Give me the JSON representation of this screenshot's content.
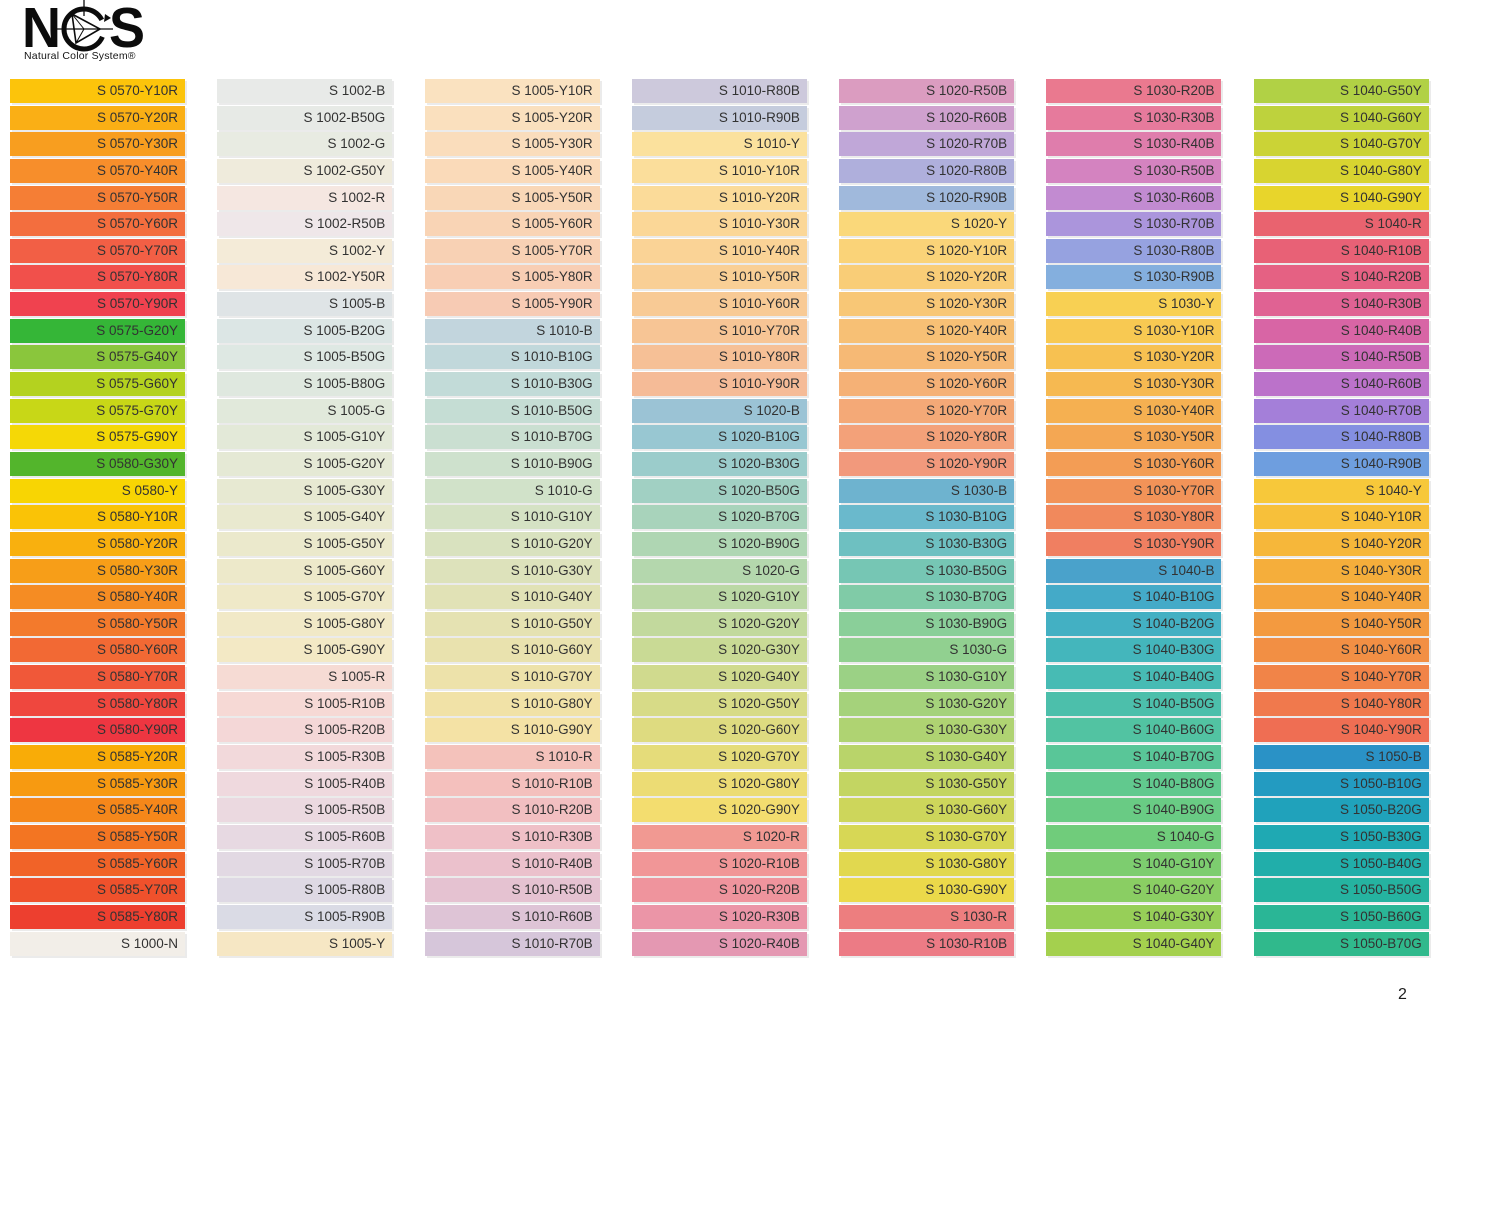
{
  "logo": {
    "letter_left": "N",
    "letter_right": "S",
    "subtitle": "Natural Color System®"
  },
  "page_number": "2",
  "label_text_color": "#323232",
  "columns": [
    [
      {
        "code": "S 0570-Y10R",
        "hex": "#FCC40B"
      },
      {
        "code": "S 0570-Y20R",
        "hex": "#FAAF15"
      },
      {
        "code": "S 0570-Y30R",
        "hex": "#F89E1F"
      },
      {
        "code": "S 0570-Y40R",
        "hex": "#F78E2B"
      },
      {
        "code": "S 0570-Y50R",
        "hex": "#F57E35"
      },
      {
        "code": "S 0570-Y60R",
        "hex": "#F36E3E"
      },
      {
        "code": "S 0570-Y70R",
        "hex": "#F25F45"
      },
      {
        "code": "S 0570-Y80R",
        "hex": "#F1504B"
      },
      {
        "code": "S 0570-Y90R",
        "hex": "#F0424F"
      },
      {
        "code": "S 0575-G20Y",
        "hex": "#35B637"
      },
      {
        "code": "S 0575-G40Y",
        "hex": "#8AC63C"
      },
      {
        "code": "S 0575-G60Y",
        "hex": "#B4D21F"
      },
      {
        "code": "S 0575-G70Y",
        "hex": "#C8D717"
      },
      {
        "code": "S 0575-G90Y",
        "hex": "#F5D806"
      },
      {
        "code": "S 0580-G30Y",
        "hex": "#53B52C"
      },
      {
        "code": "S 0580-Y",
        "hex": "#F8D503"
      },
      {
        "code": "S 0580-Y10R",
        "hex": "#FAC306"
      },
      {
        "code": "S 0580-Y20R",
        "hex": "#F9B00E"
      },
      {
        "code": "S 0580-Y30R",
        "hex": "#F79E18"
      },
      {
        "code": "S 0580-Y40R",
        "hex": "#F58C23"
      },
      {
        "code": "S 0580-Y50R",
        "hex": "#F37A2C"
      },
      {
        "code": "S 0580-Y60R",
        "hex": "#F26934"
      },
      {
        "code": "S 0580-Y70R",
        "hex": "#F05839"
      },
      {
        "code": "S 0580-Y80R",
        "hex": "#EF473E"
      },
      {
        "code": "S 0580-Y90R",
        "hex": "#EE3641"
      },
      {
        "code": "S 0585-Y20R",
        "hex": "#F9AC07"
      },
      {
        "code": "S 0585-Y30R",
        "hex": "#F79A11"
      },
      {
        "code": "S 0585-Y40R",
        "hex": "#F5871A"
      },
      {
        "code": "S 0585-Y50R",
        "hex": "#F37522"
      },
      {
        "code": "S 0585-Y60R",
        "hex": "#F16328"
      },
      {
        "code": "S 0585-Y70R",
        "hex": "#EF512C"
      },
      {
        "code": "S 0585-Y80R",
        "hex": "#ED3F2F"
      },
      {
        "code": "S 1000-N",
        "hex": "#F2EEE8"
      }
    ],
    [
      {
        "code": "S 1002-B",
        "hex": "#E8EAE8"
      },
      {
        "code": "S 1002-B50G",
        "hex": "#E7EAE6"
      },
      {
        "code": "S 1002-G",
        "hex": "#E8EBE2"
      },
      {
        "code": "S 1002-G50Y",
        "hex": "#EFEBDC"
      },
      {
        "code": "S 1002-R",
        "hex": "#F5E7E1"
      },
      {
        "code": "S 1002-R50B",
        "hex": "#EFE7E9"
      },
      {
        "code": "S 1002-Y",
        "hex": "#F4EBD8"
      },
      {
        "code": "S 1002-Y50R",
        "hex": "#F7E8D7"
      },
      {
        "code": "S 1005-B",
        "hex": "#DFE4E6"
      },
      {
        "code": "S 1005-B20G",
        "hex": "#DCE6E5"
      },
      {
        "code": "S 1005-B50G",
        "hex": "#DEE8E3"
      },
      {
        "code": "S 1005-B80G",
        "hex": "#DFE8DF"
      },
      {
        "code": "S 1005-G",
        "hex": "#E1E9DB"
      },
      {
        "code": "S 1005-G10Y",
        "hex": "#E3E9D8"
      },
      {
        "code": "S 1005-G20Y",
        "hex": "#E5E9D5"
      },
      {
        "code": "S 1005-G30Y",
        "hex": "#E7E9D2"
      },
      {
        "code": "S 1005-G40Y",
        "hex": "#E9E9CF"
      },
      {
        "code": "S 1005-G50Y",
        "hex": "#EBE9CC"
      },
      {
        "code": "S 1005-G60Y",
        "hex": "#EDE9CA"
      },
      {
        "code": "S 1005-G70Y",
        "hex": "#EFE9C8"
      },
      {
        "code": "S 1005-G80Y",
        "hex": "#F1E9C7"
      },
      {
        "code": "S 1005-G90Y",
        "hex": "#F3E9C5"
      },
      {
        "code": "S 1005-R",
        "hex": "#F6DBD4"
      },
      {
        "code": "S 1005-R10B",
        "hex": "#F6D9D5"
      },
      {
        "code": "S 1005-R20B",
        "hex": "#F4D7D7"
      },
      {
        "code": "S 1005-R30B",
        "hex": "#F2D9DB"
      },
      {
        "code": "S 1005-R40B",
        "hex": "#EFD9DE"
      },
      {
        "code": "S 1005-R50B",
        "hex": "#EBD9E0"
      },
      {
        "code": "S 1005-R60B",
        "hex": "#E7D9E2"
      },
      {
        "code": "S 1005-R70B",
        "hex": "#E2D9E3"
      },
      {
        "code": "S 1005-R80B",
        "hex": "#DED9E4"
      },
      {
        "code": "S 1005-R90B",
        "hex": "#DADBE5"
      },
      {
        "code": "S 1005-Y",
        "hex": "#F6E7C4"
      }
    ],
    [
      {
        "code": "S 1005-Y10R",
        "hex": "#FAE2C0"
      },
      {
        "code": "S 1005-Y20R",
        "hex": "#FAE0BE"
      },
      {
        "code": "S 1005-Y30R",
        "hex": "#FADDBC"
      },
      {
        "code": "S 1005-Y40R",
        "hex": "#FADAB9"
      },
      {
        "code": "S 1005-Y50R",
        "hex": "#F9D7B7"
      },
      {
        "code": "S 1005-Y60R",
        "hex": "#F9D4B5"
      },
      {
        "code": "S 1005-Y70R",
        "hex": "#F8D1B4"
      },
      {
        "code": "S 1005-Y80R",
        "hex": "#F8CEB4"
      },
      {
        "code": "S 1005-Y90R",
        "hex": "#F7CBB4"
      },
      {
        "code": "S 1010-B",
        "hex": "#C2D5DD"
      },
      {
        "code": "S 1010-B10G",
        "hex": "#C1D8DB"
      },
      {
        "code": "S 1010-B30G",
        "hex": "#C2DBD8"
      },
      {
        "code": "S 1010-B50G",
        "hex": "#C5DDD4"
      },
      {
        "code": "S 1010-B70G",
        "hex": "#CADFD1"
      },
      {
        "code": "S 1010-B90G",
        "hex": "#CEE1CD"
      },
      {
        "code": "S 1010-G",
        "hex": "#D1E2C9"
      },
      {
        "code": "S 1010-G10Y",
        "hex": "#D5E2C4"
      },
      {
        "code": "S 1010-G20Y",
        "hex": "#D9E2BF"
      },
      {
        "code": "S 1010-G30Y",
        "hex": "#DDE2BB"
      },
      {
        "code": "S 1010-G40Y",
        "hex": "#E1E2B6"
      },
      {
        "code": "S 1010-G50Y",
        "hex": "#E5E2B2"
      },
      {
        "code": "S 1010-G60Y",
        "hex": "#E9E2AE"
      },
      {
        "code": "S 1010-G70Y",
        "hex": "#EDE2AA"
      },
      {
        "code": "S 1010-G80Y",
        "hex": "#F1E2A7"
      },
      {
        "code": "S 1010-G90Y",
        "hex": "#F4E2A5"
      },
      {
        "code": "S 1010-R",
        "hex": "#F4C2BB"
      },
      {
        "code": "S 1010-R10B",
        "hex": "#F4C0BD"
      },
      {
        "code": "S 1010-R20B",
        "hex": "#F2BFC1"
      },
      {
        "code": "S 1010-R30B",
        "hex": "#EFC0C7"
      },
      {
        "code": "S 1010-R40B",
        "hex": "#EBC1CC"
      },
      {
        "code": "S 1010-R50B",
        "hex": "#E5C2D1"
      },
      {
        "code": "S 1010-R60B",
        "hex": "#DEC4D6"
      },
      {
        "code": "S 1010-R70B",
        "hex": "#D6C6DA"
      }
    ],
    [
      {
        "code": "S 1010-R80B",
        "hex": "#CDC9DC"
      },
      {
        "code": "S 1010-R90B",
        "hex": "#C5CCDD"
      },
      {
        "code": "S 1010-Y",
        "hex": "#FBE19D"
      },
      {
        "code": "S 1010-Y10R",
        "hex": "#FBDE9B"
      },
      {
        "code": "S 1010-Y20R",
        "hex": "#FBDB99"
      },
      {
        "code": "S 1010-Y30R",
        "hex": "#FBD797"
      },
      {
        "code": "S 1010-Y40R",
        "hex": "#FAD396"
      },
      {
        "code": "S 1010-Y50R",
        "hex": "#F9CF95"
      },
      {
        "code": "S 1010-Y60R",
        "hex": "#F8CA95"
      },
      {
        "code": "S 1010-Y70R",
        "hex": "#F7C595"
      },
      {
        "code": "S 1010-Y80R",
        "hex": "#F6C096"
      },
      {
        "code": "S 1010-Y90R",
        "hex": "#F5BB97"
      },
      {
        "code": "S 1020-B",
        "hex": "#9BC3D5"
      },
      {
        "code": "S 1020-B10G",
        "hex": "#98C7D2"
      },
      {
        "code": "S 1020-B30G",
        "hex": "#9BCCCB"
      },
      {
        "code": "S 1020-B50G",
        "hex": "#A1D0C3"
      },
      {
        "code": "S 1020-B70G",
        "hex": "#A8D3BB"
      },
      {
        "code": "S 1020-B90G",
        "hex": "#AFD6B3"
      },
      {
        "code": "S 1020-G",
        "hex": "#B4D7AD"
      },
      {
        "code": "S 1020-G10Y",
        "hex": "#BBD8A5"
      },
      {
        "code": "S 1020-G20Y",
        "hex": "#C2D99D"
      },
      {
        "code": "S 1020-G30Y",
        "hex": "#C9DA95"
      },
      {
        "code": "S 1020-G40Y",
        "hex": "#D0DA8E"
      },
      {
        "code": "S 1020-G50Y",
        "hex": "#D7DB87"
      },
      {
        "code": "S 1020-G60Y",
        "hex": "#DEDB80"
      },
      {
        "code": "S 1020-G70Y",
        "hex": "#E5DC7A"
      },
      {
        "code": "S 1020-G80Y",
        "hex": "#ECDC74"
      },
      {
        "code": "S 1020-G90Y",
        "hex": "#F3DD6F"
      },
      {
        "code": "S 1020-R",
        "hex": "#F19992"
      },
      {
        "code": "S 1020-R10B",
        "hex": "#F19697"
      },
      {
        "code": "S 1020-R20B",
        "hex": "#EF949D"
      },
      {
        "code": "S 1020-R30B",
        "hex": "#EB95A7"
      },
      {
        "code": "S 1020-R40B",
        "hex": "#E498B2"
      }
    ],
    [
      {
        "code": "S 1020-R50B",
        "hex": "#DB9CC0"
      },
      {
        "code": "S 1020-R60B",
        "hex": "#CFA1CE"
      },
      {
        "code": "S 1020-R70B",
        "hex": "#C0A7D8"
      },
      {
        "code": "S 1020-R80B",
        "hex": "#AFAFDC"
      },
      {
        "code": "S 1020-R90B",
        "hex": "#A0B9DC"
      },
      {
        "code": "S 1020-Y",
        "hex": "#FAD87A"
      },
      {
        "code": "S 1020-Y10R",
        "hex": "#FAD378"
      },
      {
        "code": "S 1020-Y20R",
        "hex": "#F9CD77"
      },
      {
        "code": "S 1020-Y30R",
        "hex": "#F8C776"
      },
      {
        "code": "S 1020-Y40R",
        "hex": "#F7C075"
      },
      {
        "code": "S 1020-Y50R",
        "hex": "#F6B975"
      },
      {
        "code": "S 1020-Y60R",
        "hex": "#F5B176"
      },
      {
        "code": "S 1020-Y70R",
        "hex": "#F4A977"
      },
      {
        "code": "S 1020-Y80R",
        "hex": "#F3A179"
      },
      {
        "code": "S 1020-Y90R",
        "hex": "#F2997C"
      },
      {
        "code": "S 1030-B",
        "hex": "#6EB3CF"
      },
      {
        "code": "S 1030-B10G",
        "hex": "#6AB9CC"
      },
      {
        "code": "S 1030-B30G",
        "hex": "#6EC0C1"
      },
      {
        "code": "S 1030-B50G",
        "hex": "#76C6B4"
      },
      {
        "code": "S 1030-B70G",
        "hex": "#80CBA7"
      },
      {
        "code": "S 1030-B90G",
        "hex": "#8ACF99"
      },
      {
        "code": "S 1030-G",
        "hex": "#91D090"
      },
      {
        "code": "S 1030-G10Y",
        "hex": "#9BD185"
      },
      {
        "code": "S 1030-G20Y",
        "hex": "#A5D27B"
      },
      {
        "code": "S 1030-G30Y",
        "hex": "#AFD372"
      },
      {
        "code": "S 1030-G40Y",
        "hex": "#B9D46A"
      },
      {
        "code": "S 1030-G50Y",
        "hex": "#C3D562"
      },
      {
        "code": "S 1030-G60Y",
        "hex": "#CDD65B"
      },
      {
        "code": "S 1030-G70Y",
        "hex": "#D7D755"
      },
      {
        "code": "S 1030-G80Y",
        "hex": "#E1D84F"
      },
      {
        "code": "S 1030-G90Y",
        "hex": "#EBD94A"
      },
      {
        "code": "S 1030-R",
        "hex": "#ED7E7F"
      },
      {
        "code": "S 1030-R10B",
        "hex": "#EC7B85"
      }
    ],
    [
      {
        "code": "S 1030-R20B",
        "hex": "#EA798F"
      },
      {
        "code": "S 1030-R30B",
        "hex": "#E67A9C"
      },
      {
        "code": "S 1030-R40B",
        "hex": "#DF7DAC"
      },
      {
        "code": "S 1030-R50B",
        "hex": "#D483C0"
      },
      {
        "code": "S 1030-R60B",
        "hex": "#C28BD1"
      },
      {
        "code": "S 1030-R70B",
        "hex": "#AB95DC"
      },
      {
        "code": "S 1030-R80B",
        "hex": "#96A2E0"
      },
      {
        "code": "S 1030-R90B",
        "hex": "#84AFDE"
      },
      {
        "code": "S 1030-Y",
        "hex": "#F8D053"
      },
      {
        "code": "S 1030-Y10R",
        "hex": "#F8C952"
      },
      {
        "code": "S 1030-Y20R",
        "hex": "#F7C151"
      },
      {
        "code": "S 1030-Y30R",
        "hex": "#F6B951"
      },
      {
        "code": "S 1030-Y40R",
        "hex": "#F5B051"
      },
      {
        "code": "S 1030-Y50R",
        "hex": "#F4A753"
      },
      {
        "code": "S 1030-Y60R",
        "hex": "#F39D55"
      },
      {
        "code": "S 1030-Y70R",
        "hex": "#F29358"
      },
      {
        "code": "S 1030-Y80R",
        "hex": "#F1895C"
      },
      {
        "code": "S 1030-Y90R",
        "hex": "#F07F61"
      },
      {
        "code": "S 1040-B",
        "hex": "#4AA2CB"
      },
      {
        "code": "S 1040-B10G",
        "hex": "#44AAC8"
      },
      {
        "code": "S 1040-B20G",
        "hex": "#43B0C3"
      },
      {
        "code": "S 1040-B30G",
        "hex": "#44B6BC"
      },
      {
        "code": "S 1040-B40G",
        "hex": "#47BBB4"
      },
      {
        "code": "S 1040-B50G",
        "hex": "#4CBFAB"
      },
      {
        "code": "S 1040-B60G",
        "hex": "#52C3A2"
      },
      {
        "code": "S 1040-B70G",
        "hex": "#59C698"
      },
      {
        "code": "S 1040-B80G",
        "hex": "#61C98E"
      },
      {
        "code": "S 1040-B90G",
        "hex": "#69CB84"
      },
      {
        "code": "S 1040-G",
        "hex": "#70CC7B"
      },
      {
        "code": "S 1040-G10Y",
        "hex": "#7DCD6F"
      },
      {
        "code": "S 1040-G20Y",
        "hex": "#8ACE63"
      },
      {
        "code": "S 1040-G30Y",
        "hex": "#97CF58"
      },
      {
        "code": "S 1040-G40Y",
        "hex": "#A4D04E"
      }
    ],
    [
      {
        "code": "S 1040-G50Y",
        "hex": "#B1D145"
      },
      {
        "code": "S 1040-G60Y",
        "hex": "#BED23D"
      },
      {
        "code": "S 1040-G70Y",
        "hex": "#CBD336"
      },
      {
        "code": "S 1040-G80Y",
        "hex": "#D8D430"
      },
      {
        "code": "S 1040-G90Y",
        "hex": "#E8D52B"
      },
      {
        "code": "S 1040-R",
        "hex": "#E9636F"
      },
      {
        "code": "S 1040-R10B",
        "hex": "#E86176"
      },
      {
        "code": "S 1040-R20B",
        "hex": "#E56183"
      },
      {
        "code": "S 1040-R30B",
        "hex": "#E06293"
      },
      {
        "code": "S 1040-R40B",
        "hex": "#D865A5"
      },
      {
        "code": "S 1040-R50B",
        "hex": "#CC6AB8"
      },
      {
        "code": "S 1040-R60B",
        "hex": "#BB72CA"
      },
      {
        "code": "S 1040-R70B",
        "hex": "#A47FD9"
      },
      {
        "code": "S 1040-R80B",
        "hex": "#848FE1"
      },
      {
        "code": "S 1040-R90B",
        "hex": "#6E9EDF"
      },
      {
        "code": "S 1040-Y",
        "hex": "#F7C83A"
      },
      {
        "code": "S 1040-Y10R",
        "hex": "#F7C03A"
      },
      {
        "code": "S 1040-Y20R",
        "hex": "#F6B73A"
      },
      {
        "code": "S 1040-Y30R",
        "hex": "#F5AE3B"
      },
      {
        "code": "S 1040-Y40R",
        "hex": "#F4A43D"
      },
      {
        "code": "S 1040-Y50R",
        "hex": "#F39A40"
      },
      {
        "code": "S 1040-Y60R",
        "hex": "#F28F44"
      },
      {
        "code": "S 1040-Y70R",
        "hex": "#F18448"
      },
      {
        "code": "S 1040-Y80R",
        "hex": "#F0794D"
      },
      {
        "code": "S 1040-Y90R",
        "hex": "#EF6E53"
      },
      {
        "code": "S 1050-B",
        "hex": "#2A92C6"
      },
      {
        "code": "S 1050-B10G",
        "hex": "#239BC1"
      },
      {
        "code": "S 1050-B20G",
        "hex": "#20A2BB"
      },
      {
        "code": "S 1050-B30G",
        "hex": "#1FA9B3"
      },
      {
        "code": "S 1050-B40G",
        "hex": "#21AEAA"
      },
      {
        "code": "S 1050-B50G",
        "hex": "#25B3A0"
      },
      {
        "code": "S 1050-B60G",
        "hex": "#2AB696"
      },
      {
        "code": "S 1050-B70G",
        "hex": "#30B98C"
      }
    ]
  ]
}
